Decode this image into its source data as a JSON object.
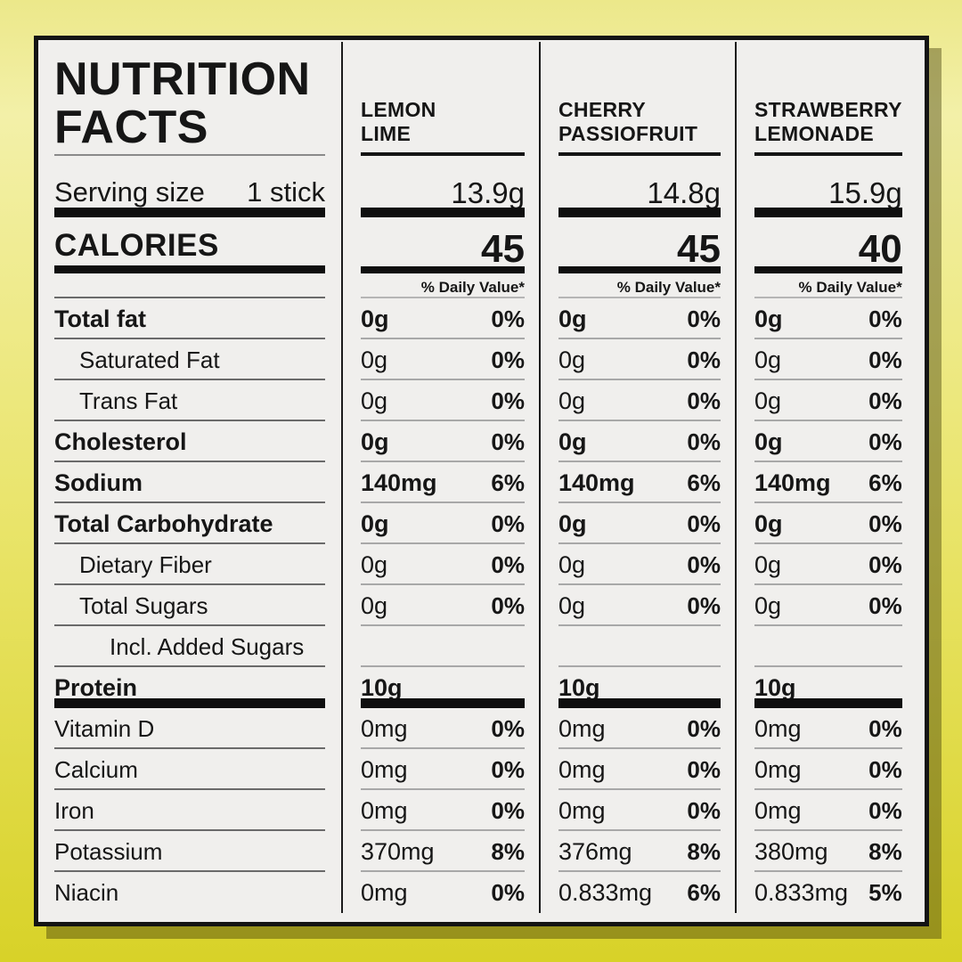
{
  "page": {
    "background_top_color": "#f3f0a8",
    "background_bottom_color": "#d8d228",
    "card_color": "#f0efed",
    "border_color": "#141414"
  },
  "panel": {
    "title_line1": "NUTRITION",
    "title_line2": "FACTS",
    "serving_label": "Serving size",
    "serving_value": "1 stick",
    "calories_label": "CALORIES",
    "daily_value_note": "% Daily Value*"
  },
  "flavors": [
    {
      "name_line1": "LEMON",
      "name_line2": "LIME",
      "serving_weight": "13.9g",
      "calories": "45"
    },
    {
      "name_line1": "CHERRY",
      "name_line2": "PASSIOFRUIT",
      "serving_weight": "14.8g",
      "calories": "45"
    },
    {
      "name_line1": "STRAWBERRY",
      "name_line2": "LEMONADE",
      "serving_weight": "15.9g",
      "calories": "40"
    }
  ],
  "nutrients": [
    {
      "label": "Total fat",
      "style": "bold",
      "indent": 0,
      "divider": "thin",
      "values": [
        [
          "0g",
          "0%"
        ],
        [
          "0g",
          "0%"
        ],
        [
          "0g",
          "0%"
        ]
      ]
    },
    {
      "label": "Saturated Fat",
      "style": "light",
      "indent": 1,
      "divider": "thin",
      "values": [
        [
          "0g",
          "0%"
        ],
        [
          "0g",
          "0%"
        ],
        [
          "0g",
          "0%"
        ]
      ]
    },
    {
      "label": "Trans Fat",
      "style": "light",
      "indent": 1,
      "divider": "thin",
      "values": [
        [
          "0g",
          "0%"
        ],
        [
          "0g",
          "0%"
        ],
        [
          "0g",
          "0%"
        ]
      ]
    },
    {
      "label": "Cholesterol",
      "style": "bold",
      "indent": 0,
      "divider": "thin",
      "values": [
        [
          "0g",
          "0%"
        ],
        [
          "0g",
          "0%"
        ],
        [
          "0g",
          "0%"
        ]
      ]
    },
    {
      "label": "Sodium",
      "style": "bold",
      "indent": 0,
      "divider": "thin",
      "values": [
        [
          "140mg",
          "6%"
        ],
        [
          "140mg",
          "6%"
        ],
        [
          "140mg",
          "6%"
        ]
      ]
    },
    {
      "label": "Total Carbohydrate",
      "style": "bold",
      "indent": 0,
      "divider": "thin",
      "values": [
        [
          "0g",
          "0%"
        ],
        [
          "0g",
          "0%"
        ],
        [
          "0g",
          "0%"
        ]
      ]
    },
    {
      "label": "Dietary Fiber",
      "style": "light",
      "indent": 1,
      "divider": "thin",
      "values": [
        [
          "0g",
          "0%"
        ],
        [
          "0g",
          "0%"
        ],
        [
          "0g",
          "0%"
        ]
      ]
    },
    {
      "label": "Total Sugars",
      "style": "light",
      "indent": 1,
      "divider": "thin",
      "values": [
        [
          "0g",
          "0%"
        ],
        [
          "0g",
          "0%"
        ],
        [
          "0g",
          "0%"
        ]
      ]
    },
    {
      "label": "Incl. Added Sugars",
      "style": "light",
      "indent": 2,
      "divider": "thin",
      "values": null
    },
    {
      "label": "Protein",
      "style": "bold",
      "indent": 0,
      "divider": "thick",
      "values": [
        [
          "10g",
          ""
        ],
        [
          "10g",
          ""
        ],
        [
          "10g",
          ""
        ]
      ]
    },
    {
      "label": "Vitamin D",
      "style": "light",
      "indent": 0,
      "divider": "thin",
      "values": [
        [
          "0mg",
          "0%"
        ],
        [
          "0mg",
          "0%"
        ],
        [
          "0mg",
          "0%"
        ]
      ]
    },
    {
      "label": "Calcium",
      "style": "light",
      "indent": 0,
      "divider": "thin",
      "values": [
        [
          "0mg",
          "0%"
        ],
        [
          "0mg",
          "0%"
        ],
        [
          "0mg",
          "0%"
        ]
      ]
    },
    {
      "label": "Iron",
      "style": "light",
      "indent": 0,
      "divider": "thin",
      "values": [
        [
          "0mg",
          "0%"
        ],
        [
          "0mg",
          "0%"
        ],
        [
          "0mg",
          "0%"
        ]
      ]
    },
    {
      "label": "Potassium",
      "style": "light",
      "indent": 0,
      "divider": "thin",
      "values": [
        [
          "370mg",
          "8%"
        ],
        [
          "376mg",
          "8%"
        ],
        [
          "380mg",
          "8%"
        ]
      ]
    },
    {
      "label": "Niacin",
      "style": "light",
      "indent": 0,
      "divider": "none",
      "values": [
        [
          "0mg",
          "0%"
        ],
        [
          "0.833mg",
          "6%"
        ],
        [
          "0.833mg",
          "5%"
        ]
      ]
    }
  ]
}
